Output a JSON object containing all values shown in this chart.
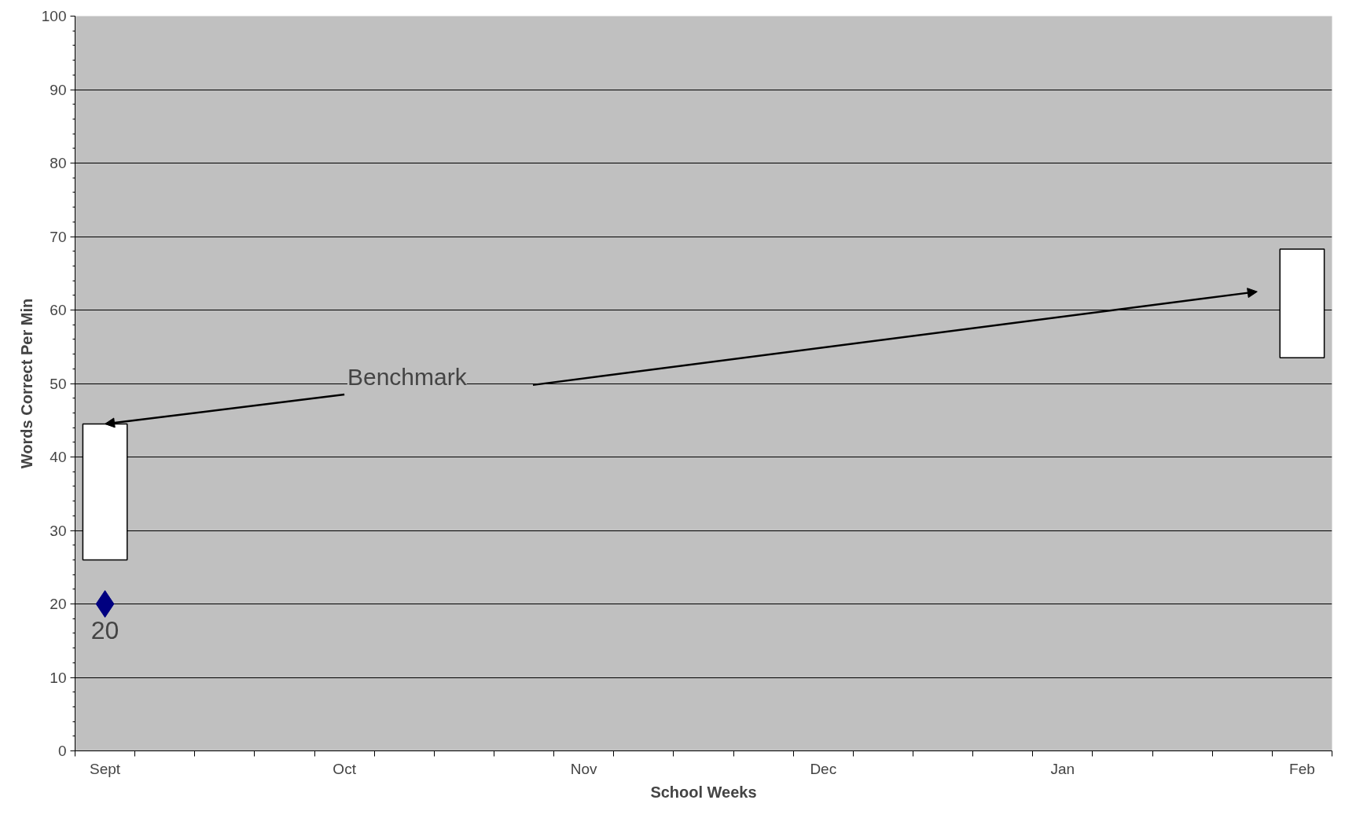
{
  "chart_data": {
    "type": "bar",
    "xlabel": "School Weeks",
    "ylabel": "Words Correct Per Min",
    "categories": [
      "Sept",
      null,
      null,
      null,
      "Oct",
      null,
      null,
      null,
      "Nov",
      null,
      null,
      null,
      "Dec",
      null,
      null,
      null,
      "Jan",
      null,
      null,
      null,
      "Feb"
    ],
    "series": [
      {
        "type": "bar",
        "color": "#ffffff",
        "values": [
          18.5,
          null,
          null,
          null,
          null,
          null,
          null,
          null,
          null,
          null,
          null,
          null,
          null,
          null,
          null,
          null,
          null,
          null,
          null,
          null,
          14.8
        ],
        "base": [
          26,
          null,
          null,
          null,
          null,
          null,
          null,
          null,
          null,
          null,
          null,
          null,
          null,
          null,
          null,
          null,
          null,
          null,
          null,
          null,
          53.5
        ]
      },
      {
        "type": "scatter",
        "color": "#000080",
        "marker": "diamond",
        "values": [
          20,
          null,
          null,
          null,
          null,
          null,
          null,
          null,
          null,
          null,
          null,
          null,
          null,
          null,
          null,
          null,
          null,
          null,
          null,
          null,
          null
        ],
        "value_labels": [
          "20",
          null,
          null,
          null,
          null,
          null,
          null,
          null,
          null,
          null,
          null,
          null,
          null,
          null,
          null,
          null,
          null,
          null,
          null,
          null,
          null
        ]
      }
    ],
    "ylim": [
      0,
      100
    ],
    "yticks": [
      0,
      10,
      20,
      30,
      40,
      50,
      60,
      70,
      80,
      90,
      100
    ],
    "grid": "y",
    "annotations": [
      {
        "text": "Benchmark",
        "x": "Sept",
        "y": 44.5
      }
    ]
  }
}
